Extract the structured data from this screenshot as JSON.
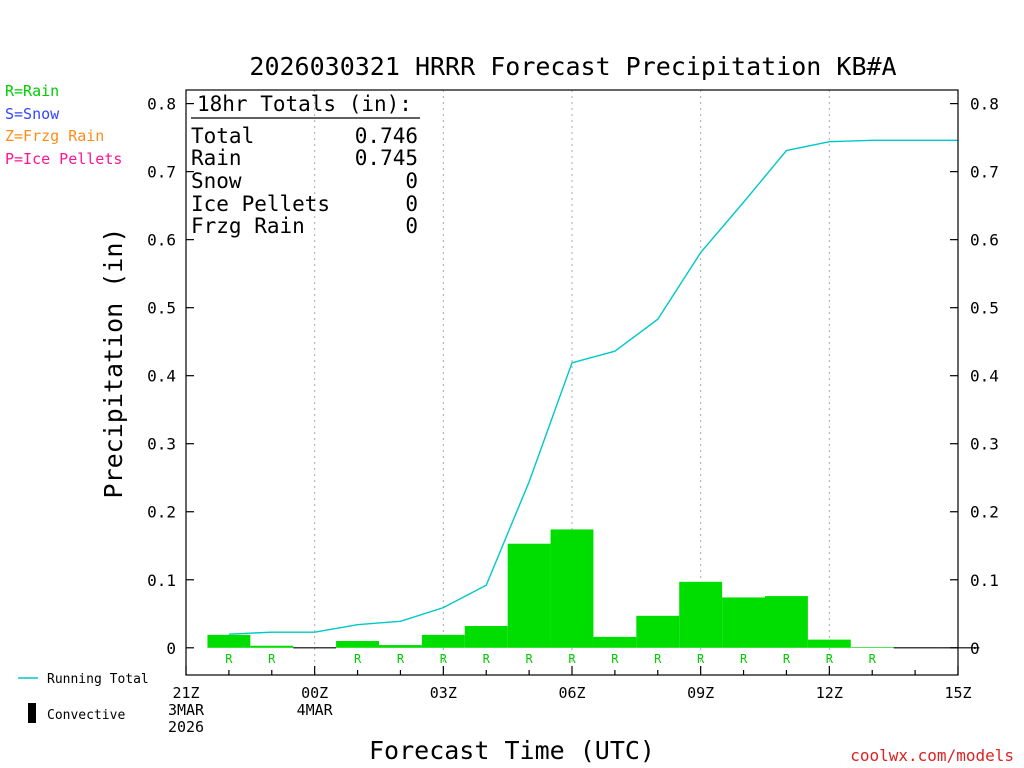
{
  "title": "2026030321 HRRR Forecast Precipitation KB#A",
  "ylabel": "Precipitation (in)",
  "xlabel": "Forecast Time (UTC)",
  "credit": "coolwx.com/models",
  "type_legend": [
    {
      "text": "R=Rain",
      "color": "#00cc00"
    },
    {
      "text": "S=Snow",
      "color": "#3344ff"
    },
    {
      "text": "Z=Frzg Rain",
      "color": "#ff8c1a"
    },
    {
      "text": "P=Ice Pellets",
      "color": "#ff1493"
    }
  ],
  "series_legend": {
    "running_total": "Running Total",
    "convective": "Convective"
  },
  "totals_box": {
    "header": "18hr Totals (in):",
    "rows": [
      {
        "label": "Total",
        "value": "0.746"
      },
      {
        "label": "Rain",
        "value": "0.745"
      },
      {
        "label": "Snow",
        "value": "0"
      },
      {
        "label": "Ice Pellets",
        "value": "0"
      },
      {
        "label": "Frzg Rain",
        "value": "0"
      }
    ]
  },
  "colors": {
    "bar": "#00dd00",
    "running_total": "#00c8c8",
    "type_mark": "#00cc00",
    "credit": "#dd2222",
    "gridline": "#aaaaaa"
  },
  "chart_data": {
    "type": "bar",
    "x_tick_labels": [
      {
        "hour": 0,
        "lines": [
          "21Z",
          "3MAR",
          "2026"
        ]
      },
      {
        "hour": 3,
        "lines": [
          "00Z",
          "4MAR"
        ]
      },
      {
        "hour": 6,
        "lines": [
          "03Z"
        ]
      },
      {
        "hour": 9,
        "lines": [
          "06Z"
        ]
      },
      {
        "hour": 12,
        "lines": [
          "09Z"
        ]
      },
      {
        "hour": 15,
        "lines": [
          "12Z"
        ]
      },
      {
        "hour": 18,
        "lines": [
          "15Z"
        ]
      }
    ],
    "y_ticks": [
      0,
      0.1,
      0.2,
      0.3,
      0.4,
      0.5,
      0.6,
      0.7,
      0.8
    ],
    "xlim": [
      0,
      18
    ],
    "ylim": [
      -0.04,
      0.82
    ],
    "grid_hours": [
      3,
      6,
      9,
      12,
      15
    ],
    "hours": [
      1,
      2,
      3,
      4,
      5,
      6,
      7,
      8,
      9,
      10,
      11,
      12,
      13,
      14,
      15,
      16,
      17,
      18
    ],
    "hourly_precip": [
      0.019,
      0.003,
      0.0,
      0.01,
      0.004,
      0.019,
      0.032,
      0.153,
      0.174,
      0.016,
      0.047,
      0.097,
      0.074,
      0.076,
      0.012,
      0.001,
      0.0,
      0.0
    ],
    "precip_type": [
      "R",
      "R",
      "",
      "R",
      "R",
      "R",
      "R",
      "R",
      "R",
      "R",
      "R",
      "R",
      "R",
      "R",
      "R",
      "R",
      "",
      ""
    ],
    "convective": [
      0,
      0,
      0,
      0,
      0,
      0,
      0,
      0,
      0,
      0,
      0,
      0,
      0,
      0,
      0,
      0,
      0,
      0
    ],
    "running_total": [
      0.02,
      0.023,
      0.023,
      0.034,
      0.039,
      0.059,
      0.092,
      0.244,
      0.419,
      0.436,
      0.483,
      0.581,
      0.655,
      0.731,
      0.744,
      0.746,
      0.746,
      0.746
    ]
  }
}
